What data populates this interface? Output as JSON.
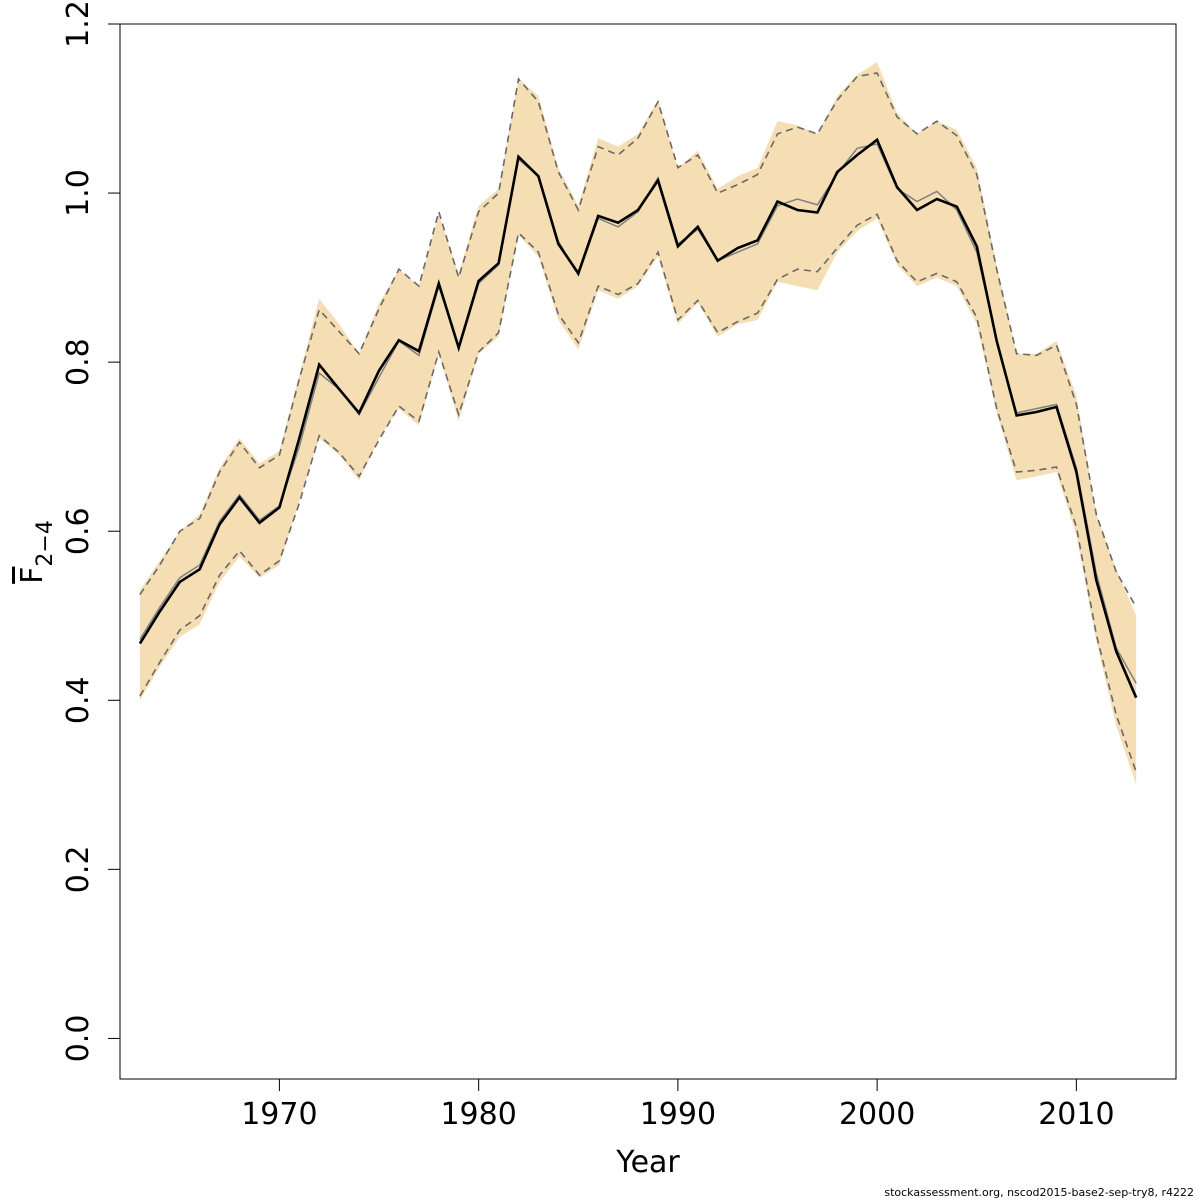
{
  "chart_data": {
    "type": "line",
    "xlabel": "Year",
    "ylabel": "F2–4",
    "ylabel_main": "F",
    "ylabel_sub": "2−4",
    "xlim": [
      1962,
      2015
    ],
    "ylim": [
      -0.048,
      1.2
    ],
    "x_ticks": [
      1970,
      1980,
      1990,
      2000,
      2010
    ],
    "y_ticks": [
      0.0,
      0.2,
      0.4,
      0.6,
      0.8,
      1.0,
      1.2
    ],
    "y_tick_labels": [
      "0.0",
      "0.2",
      "0.4",
      "0.6",
      "0.8",
      "1.0",
      "1.2"
    ],
    "grid": false,
    "colors": {
      "band": "#f5deb3",
      "estimate": "#000000",
      "alt_estimate": "#808080",
      "ci": "#696969"
    },
    "x": [
      1963,
      1964,
      1965,
      1966,
      1967,
      1968,
      1969,
      1970,
      1971,
      1972,
      1973,
      1974,
      1975,
      1976,
      1977,
      1978,
      1979,
      1980,
      1981,
      1982,
      1983,
      1984,
      1985,
      1986,
      1987,
      1988,
      1989,
      1990,
      1991,
      1992,
      1993,
      1994,
      1995,
      1996,
      1997,
      1998,
      1999,
      2000,
      2001,
      2002,
      2003,
      2004,
      2005,
      2006,
      2007,
      2008,
      2009,
      2010,
      2011,
      2012,
      2013
    ],
    "series": [
      {
        "role": "band_upper",
        "values": [
          0.53,
          0.565,
          0.6,
          0.62,
          0.675,
          0.71,
          0.68,
          0.695,
          0.785,
          0.875,
          0.845,
          0.81,
          0.87,
          0.91,
          0.89,
          0.975,
          0.905,
          0.985,
          1.005,
          1.135,
          1.115,
          1.03,
          0.985,
          1.065,
          1.055,
          1.07,
          1.11,
          1.03,
          1.05,
          1.005,
          1.02,
          1.03,
          1.085,
          1.08,
          1.07,
          1.115,
          1.14,
          1.155,
          1.095,
          1.07,
          1.085,
          1.075,
          1.03,
          0.915,
          0.81,
          0.81,
          0.825,
          0.76,
          0.62,
          0.555,
          0.5
        ]
      },
      {
        "role": "band_lower",
        "values": [
          0.4,
          0.44,
          0.475,
          0.49,
          0.54,
          0.57,
          0.545,
          0.56,
          0.635,
          0.71,
          0.69,
          0.66,
          0.71,
          0.745,
          0.725,
          0.81,
          0.73,
          0.81,
          0.83,
          0.95,
          0.925,
          0.85,
          0.815,
          0.885,
          0.875,
          0.89,
          0.925,
          0.845,
          0.87,
          0.83,
          0.845,
          0.85,
          0.895,
          0.89,
          0.885,
          0.93,
          0.955,
          0.97,
          0.915,
          0.89,
          0.9,
          0.89,
          0.845,
          0.74,
          0.66,
          0.665,
          0.67,
          0.595,
          0.47,
          0.37,
          0.3
        ]
      },
      {
        "role": "estimate",
        "values": [
          0.467,
          0.505,
          0.54,
          0.555,
          0.608,
          0.64,
          0.61,
          0.628,
          0.71,
          0.797,
          0.768,
          0.74,
          0.79,
          0.826,
          0.813,
          0.893,
          0.817,
          0.896,
          0.917,
          1.043,
          1.02,
          0.94,
          0.905,
          0.973,
          0.965,
          0.98,
          1.015,
          0.937,
          0.96,
          0.92,
          0.935,
          0.944,
          0.99,
          0.98,
          0.977,
          1.025,
          1.045,
          1.063,
          1.007,
          0.98,
          0.993,
          0.984,
          0.937,
          0.825,
          0.737,
          0.741,
          0.747,
          0.67,
          0.542,
          0.458,
          0.403
        ]
      },
      {
        "role": "alt_estimate",
        "values": [
          0.472,
          0.51,
          0.545,
          0.56,
          0.612,
          0.643,
          0.613,
          0.63,
          0.7,
          0.787,
          0.768,
          0.738,
          0.782,
          0.825,
          0.808,
          0.89,
          0.818,
          0.893,
          0.915,
          1.04,
          1.02,
          0.943,
          0.903,
          0.97,
          0.96,
          0.978,
          1.018,
          0.94,
          0.957,
          0.92,
          0.93,
          0.94,
          0.985,
          0.993,
          0.986,
          1.023,
          1.053,
          1.058,
          1.005,
          0.99,
          1.002,
          0.98,
          0.93,
          0.825,
          0.74,
          0.745,
          0.75,
          0.675,
          0.55,
          0.462,
          0.42
        ]
      },
      {
        "role": "ci_upper",
        "values": [
          0.525,
          0.56,
          0.6,
          0.615,
          0.67,
          0.705,
          0.675,
          0.69,
          0.78,
          0.862,
          0.836,
          0.81,
          0.863,
          0.91,
          0.89,
          0.978,
          0.9,
          0.978,
          1.0,
          1.135,
          1.108,
          1.025,
          0.98,
          1.055,
          1.045,
          1.065,
          1.108,
          1.03,
          1.045,
          1.0,
          1.01,
          1.022,
          1.07,
          1.078,
          1.07,
          1.11,
          1.138,
          1.142,
          1.09,
          1.07,
          1.085,
          1.068,
          1.022,
          0.91,
          0.81,
          0.808,
          0.82,
          0.75,
          0.62,
          0.552,
          0.51
        ]
      },
      {
        "role": "ci_lower",
        "values": [
          0.405,
          0.445,
          0.483,
          0.5,
          0.548,
          0.577,
          0.548,
          0.565,
          0.633,
          0.713,
          0.693,
          0.665,
          0.708,
          0.748,
          0.73,
          0.812,
          0.738,
          0.812,
          0.835,
          0.953,
          0.93,
          0.857,
          0.823,
          0.89,
          0.88,
          0.893,
          0.93,
          0.85,
          0.873,
          0.835,
          0.848,
          0.858,
          0.898,
          0.91,
          0.907,
          0.935,
          0.962,
          0.975,
          0.92,
          0.895,
          0.905,
          0.895,
          0.853,
          0.745,
          0.67,
          0.672,
          0.676,
          0.605,
          0.478,
          0.383,
          0.315
        ]
      }
    ]
  },
  "footer": "stockassessment.org, nscod2015-base2-sep-try8, r4222"
}
